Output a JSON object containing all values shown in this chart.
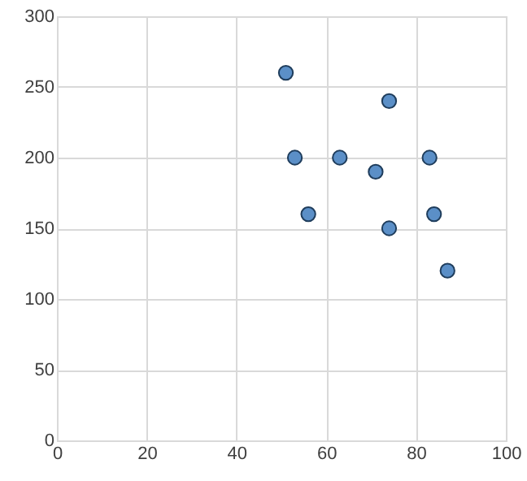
{
  "chart_data": {
    "type": "scatter",
    "x": [
      51,
      53,
      63,
      74,
      71,
      83,
      56,
      74,
      84,
      87
    ],
    "values": [
      260,
      200,
      200,
      240,
      190,
      200,
      160,
      150,
      160,
      120
    ],
    "color": "#5b8fc7",
    "marker": "circle",
    "grid": true,
    "xlim": [
      0,
      100
    ],
    "xticks": [
      0,
      20,
      40,
      60,
      80,
      100
    ],
    "ylim": [
      0,
      300
    ],
    "yticks": [
      0,
      50,
      100,
      150,
      200,
      250,
      300
    ]
  }
}
